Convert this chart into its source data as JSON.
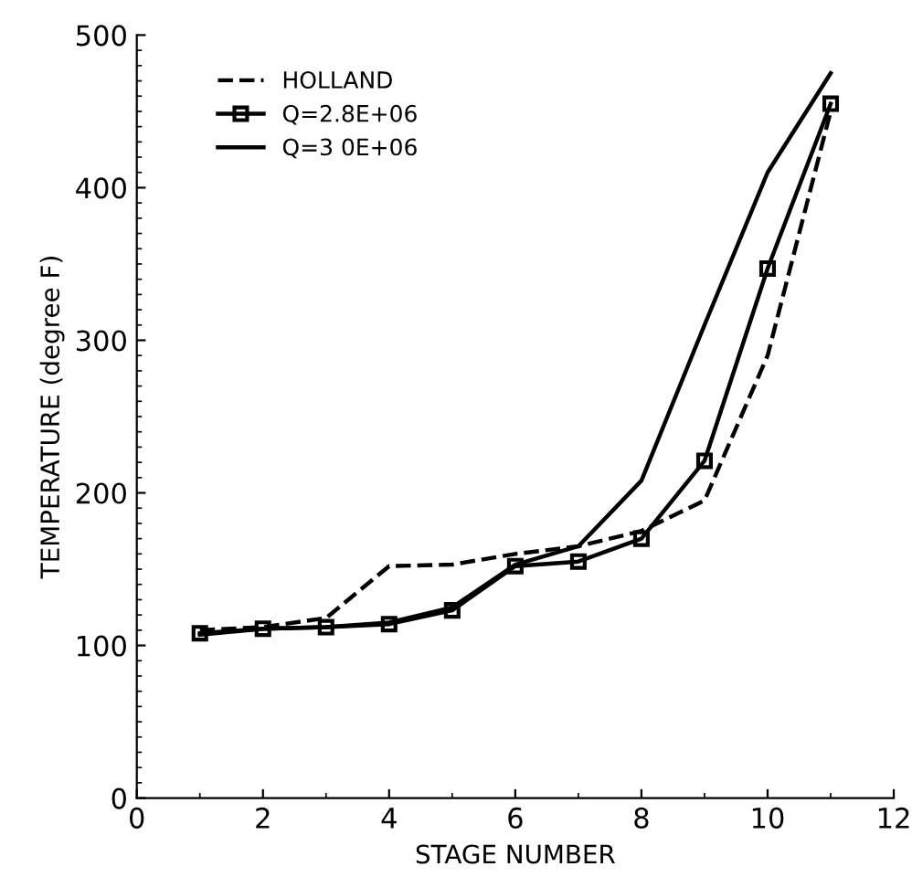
{
  "chart_data": {
    "type": "line",
    "xlabel": "STAGE NUMBER",
    "ylabel": "TEMPERATURE (degree F)",
    "x": [
      1,
      2,
      3,
      4,
      5,
      6,
      7,
      8,
      9,
      10,
      11
    ],
    "series": [
      {
        "name": "HOLLAND",
        "color": "#000000",
        "line_style": "dashed",
        "marker": "none",
        "values": [
          110,
          112,
          118,
          152,
          153,
          160,
          165,
          175,
          195,
          290,
          450
        ]
      },
      {
        "name": "Q=2.8E+06",
        "color": "#000000",
        "line_style": "solid",
        "marker": "square",
        "values": [
          108,
          111,
          112,
          114,
          123,
          152,
          155,
          170,
          221,
          347,
          455
        ]
      },
      {
        "name": "Q=3 0E+06",
        "color": "#000000",
        "line_style": "solid",
        "marker": "none",
        "values": [
          107,
          111,
          112,
          115,
          125,
          153,
          165,
          208,
          310,
          410,
          475
        ]
      }
    ],
    "xlim": [
      0,
      12
    ],
    "xticks": [
      0,
      2,
      4,
      6,
      8,
      10,
      12
    ],
    "ylim": [
      0,
      500
    ],
    "yticks": [
      0,
      100,
      200,
      300,
      400,
      500
    ],
    "grid": false,
    "legend": "top left"
  }
}
